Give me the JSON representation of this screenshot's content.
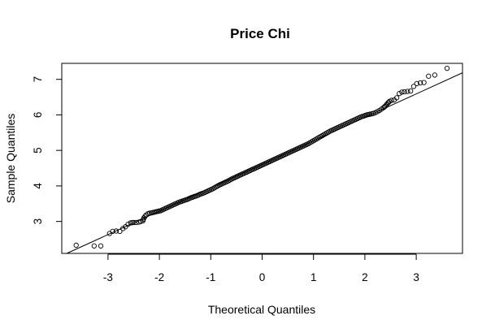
{
  "chart_data": {
    "type": "scatter",
    "subtype": "normal-qq-plot",
    "title": "Price Chi",
    "xlabel": "Theoretical Quantiles",
    "ylabel": "Sample Quantiles",
    "xlim": [
      -3.9,
      3.9
    ],
    "ylim": [
      2.1,
      7.45
    ],
    "xticks": [
      -3,
      -2,
      -1,
      0,
      1,
      2,
      3
    ],
    "xtick_labels": [
      "-3",
      "-2",
      "-1",
      "0",
      "1",
      "2",
      "3"
    ],
    "yticks": [
      3,
      4,
      5,
      6,
      7
    ],
    "ytick_labels": [
      "3",
      "4",
      "5",
      "6",
      "7"
    ],
    "grid": false,
    "legend": "none",
    "reference_line": {
      "slope": 0.66,
      "intercept": 4.61
    },
    "points": [
      [
        -3.62,
        2.33
      ],
      [
        -3.27,
        2.31
      ],
      [
        -3.14,
        2.31
      ],
      [
        -2.97,
        2.66
      ],
      [
        -2.91,
        2.72
      ],
      [
        -2.84,
        2.73
      ],
      [
        -2.77,
        2.72
      ],
      [
        -2.71,
        2.8
      ],
      [
        -2.66,
        2.85
      ],
      [
        -2.61,
        2.92
      ],
      [
        -2.56,
        2.96
      ],
      [
        -2.5,
        2.97
      ],
      [
        -2.45,
        2.97
      ],
      [
        -2.4,
        2.98
      ],
      [
        -2.36,
        3.0
      ],
      [
        -2.32,
        3.02
      ],
      [
        -2.3,
        3.1
      ],
      [
        -2.26,
        3.18
      ],
      [
        -2.22,
        3.22
      ],
      [
        -2.16,
        3.24
      ],
      [
        -2.1,
        3.26
      ],
      [
        -2.04,
        3.28
      ],
      [
        -1.98,
        3.3
      ],
      [
        -1.92,
        3.34
      ],
      [
        -1.86,
        3.38
      ],
      [
        -1.8,
        3.42
      ],
      [
        -1.74,
        3.46
      ],
      [
        -1.68,
        3.5
      ],
      [
        -1.62,
        3.54
      ],
      [
        -1.56,
        3.57
      ],
      [
        -1.5,
        3.6
      ],
      [
        -1.44,
        3.63
      ],
      [
        -1.38,
        3.67
      ],
      [
        -1.32,
        3.7
      ],
      [
        -1.26,
        3.73
      ],
      [
        -1.2,
        3.77
      ],
      [
        -1.14,
        3.8
      ],
      [
        -1.08,
        3.84
      ],
      [
        -1.02,
        3.88
      ],
      [
        -0.96,
        3.92
      ],
      [
        -0.9,
        3.97
      ],
      [
        -0.84,
        4.02
      ],
      [
        -0.78,
        4.06
      ],
      [
        -0.72,
        4.1
      ],
      [
        -0.66,
        4.14
      ],
      [
        -0.6,
        4.19
      ],
      [
        -0.54,
        4.23
      ],
      [
        -0.48,
        4.27
      ],
      [
        -0.42,
        4.31
      ],
      [
        -0.36,
        4.35
      ],
      [
        -0.3,
        4.39
      ],
      [
        -0.24,
        4.43
      ],
      [
        -0.18,
        4.47
      ],
      [
        -0.12,
        4.51
      ],
      [
        -0.06,
        4.55
      ],
      [
        0.0,
        4.59
      ],
      [
        0.06,
        4.63
      ],
      [
        0.12,
        4.67
      ],
      [
        0.18,
        4.71
      ],
      [
        0.24,
        4.75
      ],
      [
        0.3,
        4.79
      ],
      [
        0.36,
        4.83
      ],
      [
        0.42,
        4.87
      ],
      [
        0.48,
        4.91
      ],
      [
        0.54,
        4.95
      ],
      [
        0.6,
        4.99
      ],
      [
        0.66,
        5.03
      ],
      [
        0.72,
        5.07
      ],
      [
        0.78,
        5.11
      ],
      [
        0.84,
        5.15
      ],
      [
        0.9,
        5.19
      ],
      [
        0.96,
        5.24
      ],
      [
        1.02,
        5.29
      ],
      [
        1.08,
        5.34
      ],
      [
        1.14,
        5.39
      ],
      [
        1.2,
        5.44
      ],
      [
        1.26,
        5.49
      ],
      [
        1.32,
        5.54
      ],
      [
        1.38,
        5.58
      ],
      [
        1.44,
        5.62
      ],
      [
        1.5,
        5.66
      ],
      [
        1.56,
        5.7
      ],
      [
        1.62,
        5.74
      ],
      [
        1.68,
        5.78
      ],
      [
        1.74,
        5.82
      ],
      [
        1.8,
        5.86
      ],
      [
        1.86,
        5.9
      ],
      [
        1.92,
        5.94
      ],
      [
        1.98,
        5.97
      ],
      [
        2.04,
        6.0
      ],
      [
        2.1,
        6.02
      ],
      [
        2.16,
        6.04
      ],
      [
        2.2,
        6.06
      ],
      [
        2.24,
        6.09
      ],
      [
        2.28,
        6.12
      ],
      [
        2.32,
        6.16
      ],
      [
        2.36,
        6.2
      ],
      [
        2.4,
        6.25
      ],
      [
        2.44,
        6.32
      ],
      [
        2.48,
        6.38
      ],
      [
        2.52,
        6.41
      ],
      [
        2.57,
        6.42
      ],
      [
        2.62,
        6.48
      ],
      [
        2.67,
        6.6
      ],
      [
        2.72,
        6.64
      ],
      [
        2.77,
        6.65
      ],
      [
        2.83,
        6.66
      ],
      [
        2.89,
        6.67
      ],
      [
        2.95,
        6.8
      ],
      [
        3.01,
        6.88
      ],
      [
        3.08,
        6.9
      ],
      [
        3.15,
        6.91
      ],
      [
        3.24,
        7.09
      ],
      [
        3.36,
        7.12
      ],
      [
        3.6,
        7.31
      ]
    ]
  }
}
